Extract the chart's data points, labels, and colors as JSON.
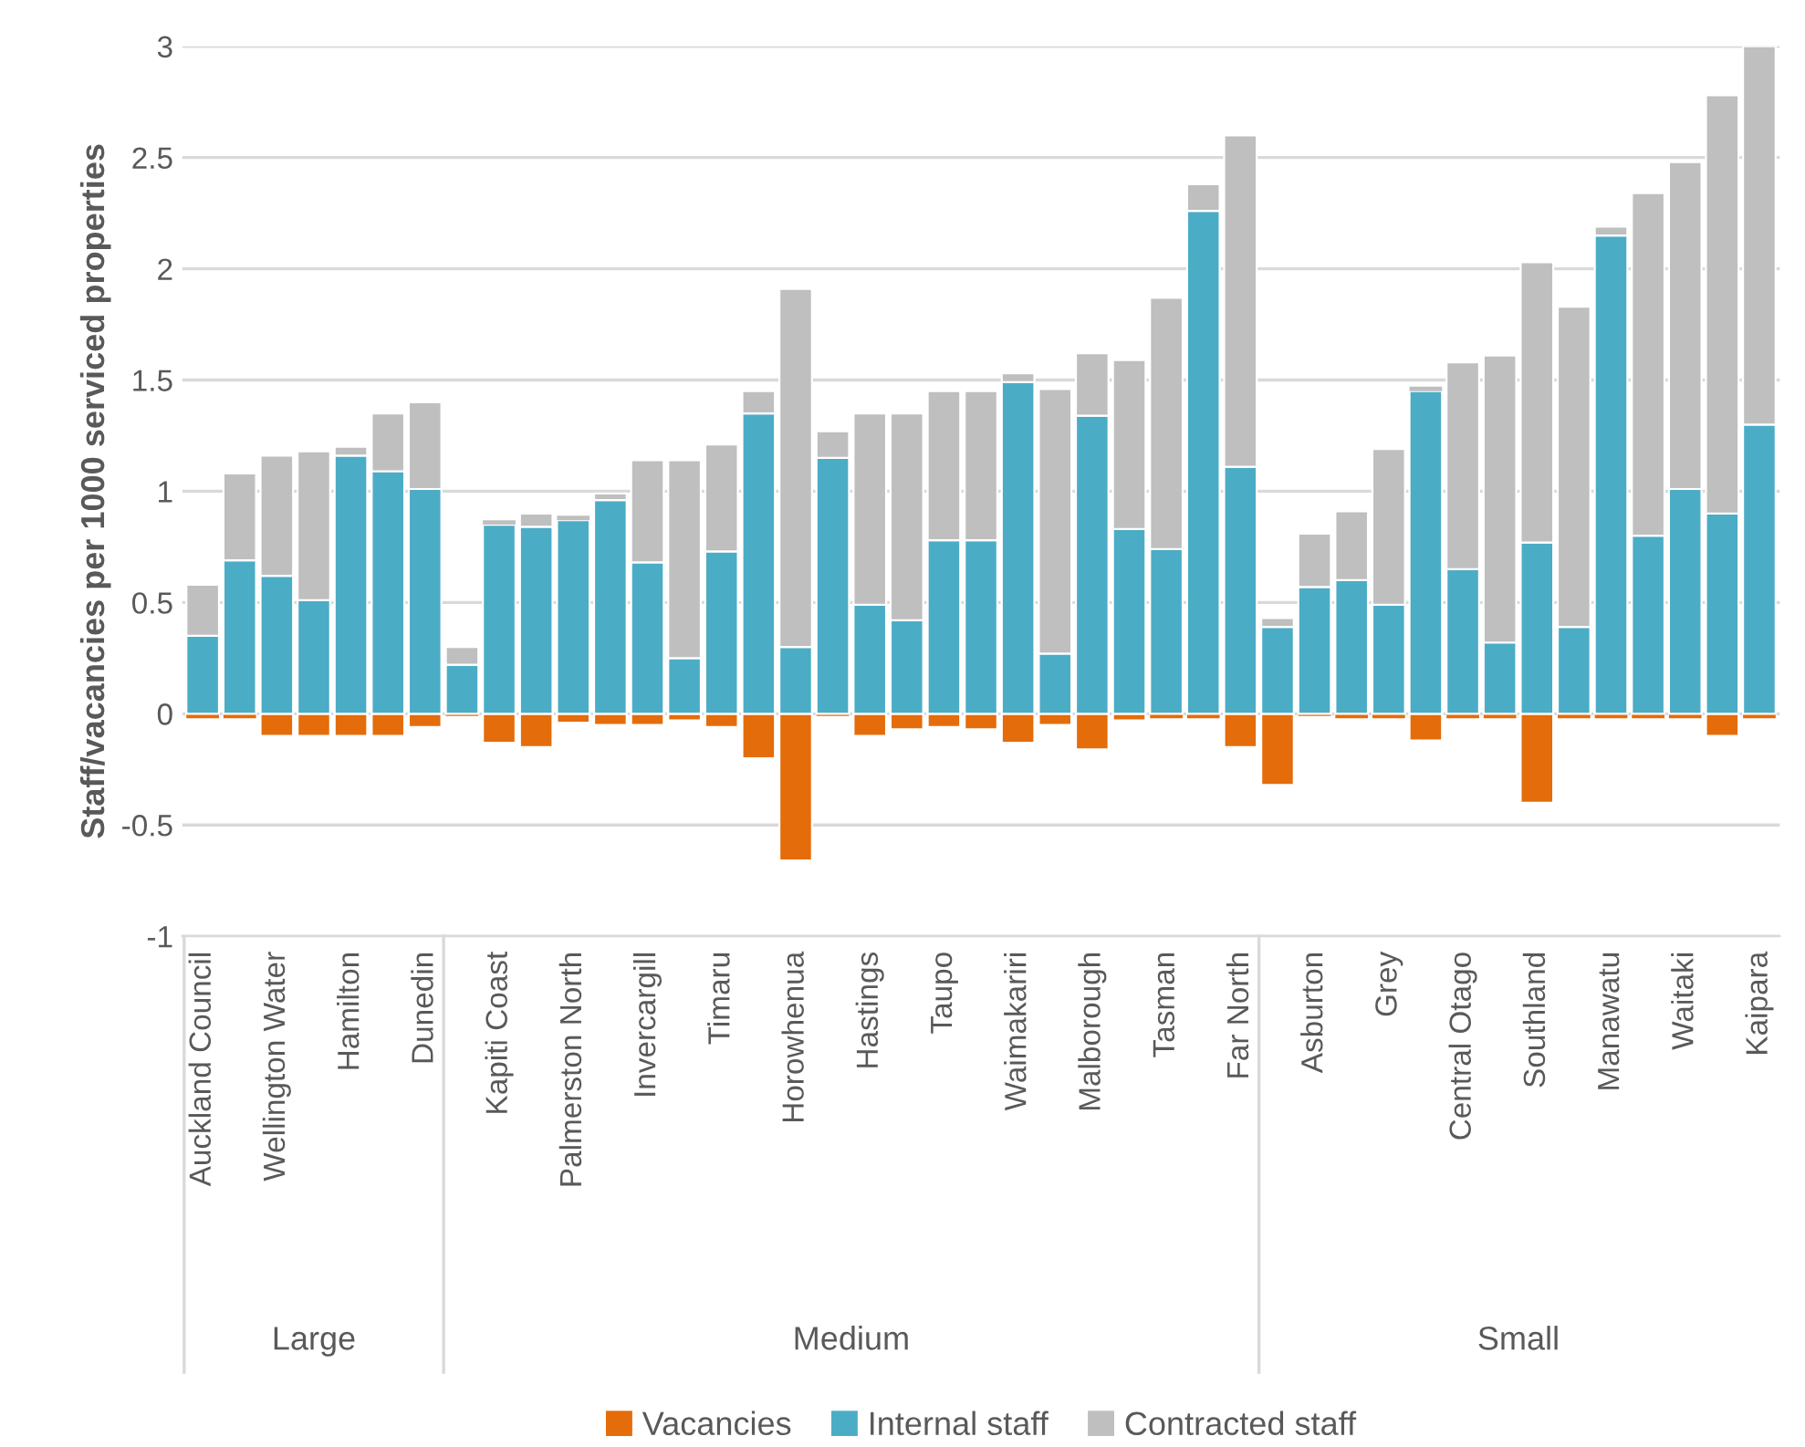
{
  "chart_data": {
    "type": "bar",
    "stacked": true,
    "ylabel": "Staff/vacancies per 1000 serviced properties",
    "categories": [
      "Auckland Council",
      null,
      "Wellington Water",
      null,
      "Hamilton",
      null,
      "Dunedin",
      null,
      "Kapiti Coast",
      null,
      "Palmerston North",
      null,
      "Invercargill",
      null,
      "Timaru",
      null,
      "Horowhenua",
      null,
      "Hastings",
      null,
      "Taupo",
      null,
      "Waimakariri",
      null,
      "Malborough",
      null,
      "Tasman",
      null,
      "Far North",
      null,
      "Asburton",
      null,
      "Grey",
      null,
      "Central Otago",
      null,
      "Southland",
      null,
      "Manawatu",
      null,
      "Waitaki",
      null,
      "Kaipara"
    ],
    "series": [
      {
        "name": "Vacancies",
        "color": "#e46c0a",
        "values": [
          -0.02,
          -0.02,
          -0.1,
          -0.1,
          -0.1,
          -0.1,
          -0.06,
          -0.01,
          -0.13,
          -0.15,
          -0.04,
          -0.05,
          -0.05,
          -0.03,
          -0.06,
          -0.2,
          -0.66,
          -0.01,
          -0.1,
          -0.07,
          -0.06,
          -0.07,
          -0.13,
          -0.05,
          -0.16,
          -0.03,
          -0.02,
          -0.02,
          -0.15,
          -0.32,
          -0.01,
          -0.02,
          -0.02,
          -0.12,
          -0.02,
          -0.02,
          -0.4,
          -0.02,
          -0.02,
          -0.02,
          -0.02,
          -0.1,
          -0.02
        ]
      },
      {
        "name": "Internal staff",
        "color": "#4bacc6",
        "values": [
          0.35,
          0.69,
          0.62,
          0.51,
          1.16,
          1.09,
          1.01,
          0.22,
          0.85,
          0.84,
          0.87,
          0.96,
          0.68,
          0.25,
          0.73,
          1.35,
          0.3,
          1.15,
          0.49,
          0.42,
          0.78,
          0.78,
          1.49,
          0.27,
          1.34,
          0.83,
          0.74,
          2.26,
          1.11,
          0.39,
          0.57,
          0.6,
          0.49,
          1.45,
          0.65,
          0.32,
          0.77,
          0.39,
          2.15,
          0.8,
          1.01,
          0.9,
          1.3
        ]
      },
      {
        "name": "Contracted staff",
        "color": "#bfbfbf",
        "values": [
          0.23,
          0.39,
          0.54,
          0.67,
          0.04,
          0.26,
          0.39,
          0.08,
          0.02,
          0.06,
          0.02,
          0.03,
          0.46,
          0.89,
          0.48,
          0.1,
          1.61,
          0.12,
          0.86,
          0.93,
          0.67,
          0.67,
          0.04,
          1.19,
          0.28,
          0.76,
          1.13,
          0.12,
          1.49,
          0.04,
          0.24,
          0.31,
          0.7,
          0.02,
          0.93,
          1.29,
          1.26,
          1.44,
          0.04,
          1.54,
          1.47,
          1.88,
          1.7
        ]
      }
    ],
    "ylim": [
      -1,
      3
    ],
    "yticks": [
      -1,
      -0.5,
      0,
      0.5,
      1,
      1.5,
      2,
      2.5,
      3
    ],
    "grid": "y",
    "legend": "bottom",
    "annotations": [
      "Large",
      "Medium",
      "Small"
    ]
  }
}
